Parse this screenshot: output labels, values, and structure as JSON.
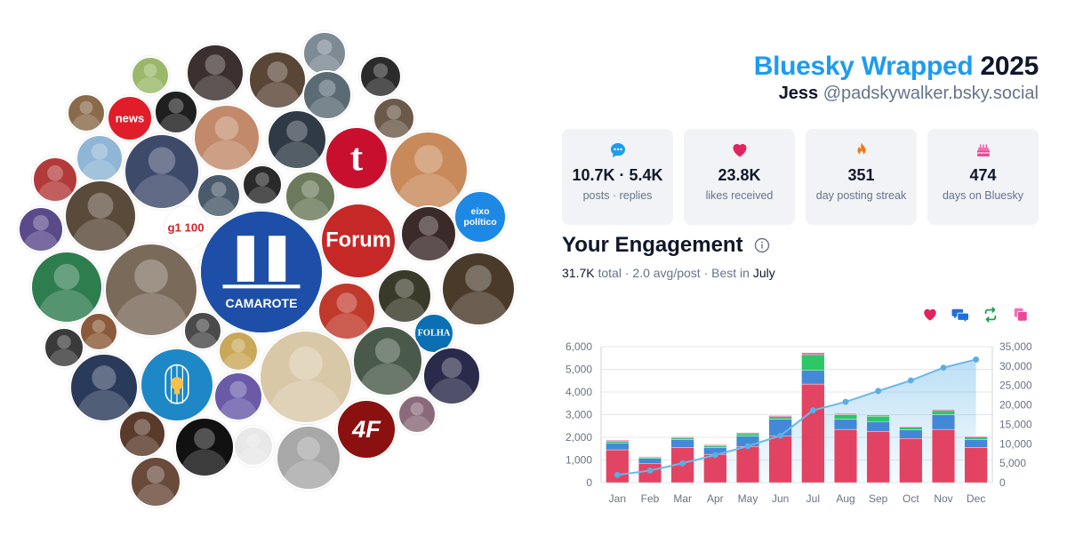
{
  "header": {
    "title_brand": "Bluesky Wrapped",
    "title_year": "2025",
    "user_name": "Jess",
    "user_handle": "@padskywalker.bsky.social"
  },
  "stats": [
    {
      "icon": "speech-bubble-icon",
      "color": "#1d9bf0",
      "value": "10.7K · 5.4K",
      "label": "posts · replies"
    },
    {
      "icon": "heart-icon",
      "color": "#e0245e",
      "value": "23.8K",
      "label": "likes received"
    },
    {
      "icon": "flame-icon",
      "color": "#f97316",
      "value": "351",
      "label": "day posting streak"
    },
    {
      "icon": "cake-icon",
      "color": "#ec4899",
      "value": "474",
      "label": "days on Bluesky"
    }
  ],
  "engagement": {
    "title": "Your Engagement",
    "total_value": "31.7K",
    "total_word": "total",
    "avg": "2.0 avg/post",
    "best_prefix": "Best in",
    "best_month": "July"
  },
  "legend": [
    {
      "icon": "heart-icon",
      "color": "#e0245e"
    },
    {
      "icon": "reply-icon",
      "color": "#1d6fe0"
    },
    {
      "icon": "repost-icon",
      "color": "#16a34a"
    },
    {
      "icon": "quote-icon",
      "color": "#ec4899"
    }
  ],
  "bubbles": [
    {
      "label": "",
      "color": "#8a6a4a",
      "icon": "avatar-icon"
    },
    {
      "label": "",
      "color": "#9bb86a",
      "icon": "avatar-icon"
    },
    {
      "label": "",
      "color": "#3b2f2f",
      "icon": "avatar-icon"
    },
    {
      "label": "",
      "color": "#5a4636",
      "icon": "avatar-icon"
    },
    {
      "label": "",
      "color": "#7e8a94",
      "icon": "avatar-icon"
    },
    {
      "label": "",
      "color": "#2b2b2b",
      "icon": "avatar-icon"
    },
    {
      "label": "",
      "color": "#5b6b74",
      "icon": "avatar-icon"
    },
    {
      "label": "news",
      "color": "#e11d2a",
      "icon": "cnews-logo-icon"
    },
    {
      "label": "",
      "color": "#1f1f1f",
      "icon": "avatar-icon"
    },
    {
      "label": "",
      "color": "#6b5a4a",
      "icon": "avatar-icon"
    },
    {
      "label": "",
      "color": "#8fb6d6",
      "icon": "avatar-icon"
    },
    {
      "label": "",
      "color": "#c28a6a",
      "icon": "avatar-icon"
    },
    {
      "label": "",
      "color": "#2f3a46",
      "icon": "avatar-icon"
    },
    {
      "label": "",
      "color": "#3e4a6a",
      "icon": "avatar-icon"
    },
    {
      "label": "t",
      "color": "#c8102e",
      "icon": "tumblr-logo-icon"
    },
    {
      "label": "",
      "color": "#c88a5a",
      "icon": "avatar-icon"
    },
    {
      "label": "",
      "color": "#4a5a6a",
      "icon": "avatar-icon"
    },
    {
      "label": "",
      "color": "#2a2a2a",
      "icon": "avatar-icon"
    },
    {
      "label": "",
      "color": "#6a7a5a",
      "icon": "avatar-icon"
    },
    {
      "label": "",
      "color": "#b33a3a",
      "icon": "avatar-icon"
    },
    {
      "label": "",
      "color": "#5a4a3a",
      "icon": "avatar-icon"
    },
    {
      "label": "g1 100",
      "color": "#ffffff",
      "icon": "g1-logo-icon"
    },
    {
      "label": "",
      "color": "#3a2a2a",
      "icon": "avatar-icon"
    },
    {
      "label": "Forum",
      "color": "#c62828",
      "icon": "forum-logo-icon"
    },
    {
      "label": "",
      "color": "#5a4a8a",
      "icon": "avatar-icon"
    },
    {
      "label": "eixo político",
      "color": "#1e88e5",
      "icon": "eixo-logo-icon"
    },
    {
      "label": "CAMAROTE",
      "color": "#1e4fa8",
      "icon": "camarote-logo-icon"
    },
    {
      "label": "",
      "color": "#2e7d4f",
      "icon": "avatar-icon"
    },
    {
      "label": "",
      "color": "#4a3a2a",
      "icon": "avatar-icon"
    },
    {
      "label": "",
      "color": "#7a6a5a",
      "icon": "avatar-icon"
    },
    {
      "label": "",
      "color": "#c0392b",
      "icon": "avatar-icon"
    },
    {
      "label": "",
      "color": "#3a3a2a",
      "icon": "avatar-icon"
    },
    {
      "label": "FOLHA",
      "color": "#0a6fb3",
      "icon": "folha-logo-icon"
    },
    {
      "label": "",
      "color": "#3a3a3a",
      "icon": "avatar-icon"
    },
    {
      "label": "",
      "color": "#8a5a3a",
      "icon": "avatar-icon"
    },
    {
      "label": "",
      "color": "#4a4a4a",
      "icon": "avatar-icon"
    },
    {
      "label": "",
      "color": "#c9a85a",
      "icon": "avatar-icon"
    },
    {
      "label": "",
      "color": "#2a3a5a",
      "icon": "avatar-icon"
    },
    {
      "label": "",
      "color": "#1e88c6",
      "icon": "lightbulb-cage-icon"
    },
    {
      "label": "",
      "color": "#6a5aa8",
      "icon": "avatar-icon"
    },
    {
      "label": "",
      "color": "#d8c8a8",
      "icon": "avatar-icon"
    },
    {
      "label": "",
      "color": "#4a5a4a",
      "icon": "avatar-icon"
    },
    {
      "label": "",
      "color": "#2a2a4a",
      "icon": "avatar-icon"
    },
    {
      "label": "",
      "color": "#8a6a7a",
      "icon": "avatar-icon"
    },
    {
      "label": "",
      "color": "#5a3a2a",
      "icon": "avatar-icon"
    },
    {
      "label": "",
      "color": "#111111",
      "icon": "avatar-icon"
    },
    {
      "label": "",
      "color": "#e8e8e8",
      "icon": "avatar-icon"
    },
    {
      "label": "",
      "color": "#a8a8a8",
      "icon": "avatar-icon"
    },
    {
      "label": "4F",
      "color": "#8b1010",
      "icon": "4f-logo-icon"
    },
    {
      "label": "",
      "color": "#6a4a3a",
      "icon": "avatar-icon"
    }
  ],
  "chart_data": {
    "type": "bar",
    "categories": [
      "Jan",
      "Feb",
      "Mar",
      "Apr",
      "May",
      "Jun",
      "Jul",
      "Aug",
      "Sep",
      "Oct",
      "Nov",
      "Dec"
    ],
    "series": [
      {
        "name": "likes",
        "color": "#e23a5a",
        "values": [
          1450,
          850,
          1550,
          1250,
          1600,
          2050,
          4350,
          2350,
          2250,
          1950,
          2350,
          1550
        ]
      },
      {
        "name": "replies",
        "color": "#3b82d6",
        "values": [
          300,
          220,
          350,
          300,
          450,
          750,
          600,
          450,
          450,
          380,
          650,
          350
        ]
      },
      {
        "name": "reposts",
        "color": "#22c55e",
        "values": [
          80,
          50,
          80,
          80,
          110,
          110,
          700,
          200,
          230,
          110,
          180,
          110
        ]
      },
      {
        "name": "quotes",
        "color": "#ec4899",
        "values": [
          40,
          30,
          40,
          40,
          50,
          50,
          80,
          50,
          50,
          40,
          50,
          40
        ]
      }
    ],
    "cumulative": [
      2000,
      3100,
      5000,
      7100,
      9400,
      12100,
      18600,
      20800,
      23600,
      26300,
      29600,
      31700
    ],
    "ylim": [
      0,
      6000
    ],
    "yticks": [
      0,
      1000,
      2000,
      3000,
      4000,
      5000,
      6000
    ],
    "ytick_labels": [
      "0",
      "1,000",
      "2,000",
      "3,000",
      "4,000",
      "5,000",
      "6,000"
    ],
    "y2lim": [
      0,
      35000
    ],
    "y2ticks": [
      0,
      5000,
      10000,
      15000,
      20000,
      25000,
      30000,
      35000
    ],
    "y2tick_labels": [
      "0",
      "5,000",
      "10,000",
      "15,000",
      "20,000",
      "25,000",
      "30,000",
      "35,000"
    ],
    "stacked": true,
    "grid": true,
    "line_color": "#6ab8ea"
  }
}
